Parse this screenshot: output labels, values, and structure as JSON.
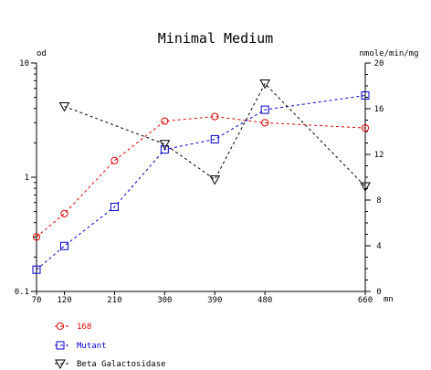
{
  "chart_data": {
    "type": "line",
    "title": "Minimal Medium",
    "x_unit": "mn",
    "y_left_unit": "od",
    "y_right_unit": "nmole/min/mg",
    "x": [
      70,
      120,
      210,
      300,
      390,
      480,
      660
    ],
    "x_tick_labels": [
      "70",
      "120",
      "210",
      "300",
      "390",
      "480",
      "660"
    ],
    "y_left_scale": "log",
    "y_left_range": [
      0.1,
      10
    ],
    "y_left_tick_labels": [
      "10",
      "1",
      "0.1"
    ],
    "y_right_range": [
      0,
      20
    ],
    "y_right_tick_labels": [
      "20",
      "16",
      "12",
      "8",
      "4",
      "0"
    ],
    "grid": false,
    "legend_position": "bottom-left",
    "series": [
      {
        "name": "168",
        "axis": "left",
        "color": "#dd0000",
        "marker": "circle",
        "x": [
          70,
          120,
          210,
          300,
          390,
          480,
          660
        ],
        "values": [
          0.3,
          0.48,
          1.4,
          3.1,
          3.4,
          3.0,
          2.7
        ]
      },
      {
        "name": "Mutant",
        "axis": "left",
        "color": "#0000cc",
        "marker": "square",
        "x": [
          70,
          120,
          210,
          300,
          390,
          480,
          660
        ],
        "values": [
          0.155,
          0.25,
          0.55,
          1.75,
          2.15,
          3.9,
          5.2
        ]
      },
      {
        "name": "Beta Galactosidase",
        "axis": "right",
        "color": "#000000",
        "marker": "triangle-down",
        "x": [
          120,
          300,
          390,
          480,
          660
        ],
        "values": [
          16.2,
          12.9,
          9.8,
          18.2,
          9.2
        ]
      }
    ]
  }
}
